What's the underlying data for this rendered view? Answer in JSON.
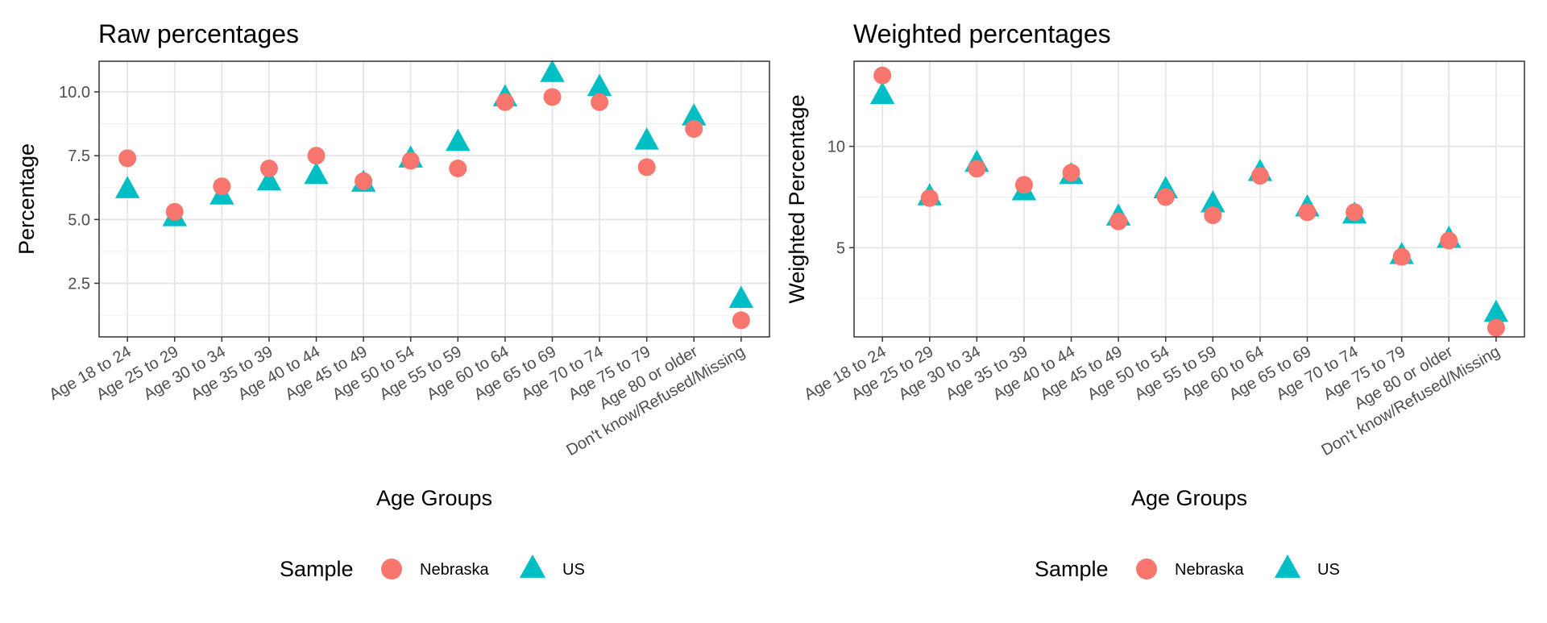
{
  "legend": {
    "title": "Sample",
    "items": [
      {
        "label": "Nebraska",
        "color": "#F8766D",
        "shape": "circle"
      },
      {
        "label": "US",
        "color": "#00BFC4",
        "shape": "triangle"
      }
    ]
  },
  "chart_data": [
    {
      "type": "scatter",
      "title": "Raw percentages",
      "xlabel": "Age Groups",
      "ylabel": "Percentage",
      "categories": [
        "Age 18 to 24",
        "Age 25 to 29",
        "Age 30 to 34",
        "Age 35 to 39",
        "Age 40 to 44",
        "Age 45 to 49",
        "Age 50 to 54",
        "Age 55 to 59",
        "Age 60 to 64",
        "Age 65 to 69",
        "Age 70 to 74",
        "Age 75 to 79",
        "Age 80 or older",
        "Don't know/Refused/Missing"
      ],
      "ylim": [
        0.4,
        11.2
      ],
      "yticks": [
        2.5,
        5.0,
        7.5,
        10.0
      ],
      "ytick_labels": [
        "2.5",
        "5.0",
        "7.5",
        "10.0"
      ],
      "grid": true,
      "legend_position": "bottom",
      "series": [
        {
          "name": "Nebraska",
          "values": [
            7.4,
            5.3,
            6.3,
            7.0,
            7.5,
            6.5,
            7.3,
            7.0,
            9.6,
            9.8,
            9.6,
            7.05,
            8.55,
            1.05
          ]
        },
        {
          "name": "US",
          "values": [
            6.2,
            5.1,
            5.95,
            6.5,
            6.75,
            6.45,
            7.4,
            8.05,
            9.8,
            10.75,
            10.2,
            8.1,
            9.05,
            1.9
          ]
        }
      ]
    },
    {
      "type": "scatter",
      "title": "Weighted percentages",
      "xlabel": "Age Groups",
      "ylabel": "Weighted Percentage",
      "categories": [
        "Age 18 to 24",
        "Age 25 to 29",
        "Age 30 to 34",
        "Age 35 to 39",
        "Age 40 to 44",
        "Age 45 to 49",
        "Age 50 to 54",
        "Age 55 to 59",
        "Age 60 to 64",
        "Age 65 to 69",
        "Age 70 to 74",
        "Age 75 to 79",
        "Age 80 or older",
        "Don't know/Refused/Missing"
      ],
      "ylim": [
        0.6,
        14.2
      ],
      "yticks": [
        5,
        10
      ],
      "ytick_labels": [
        "5",
        "10"
      ],
      "grid": true,
      "legend_position": "bottom",
      "series": [
        {
          "name": "Nebraska",
          "values": [
            13.5,
            7.45,
            8.9,
            8.1,
            8.7,
            6.3,
            7.5,
            6.6,
            8.55,
            6.75,
            6.75,
            4.55,
            5.35,
            1.05
          ]
        },
        {
          "name": "US",
          "values": [
            12.55,
            7.55,
            9.2,
            7.8,
            8.6,
            6.55,
            7.9,
            7.2,
            8.75,
            7.0,
            6.65,
            4.65,
            5.45,
            1.8
          ]
        }
      ]
    }
  ]
}
